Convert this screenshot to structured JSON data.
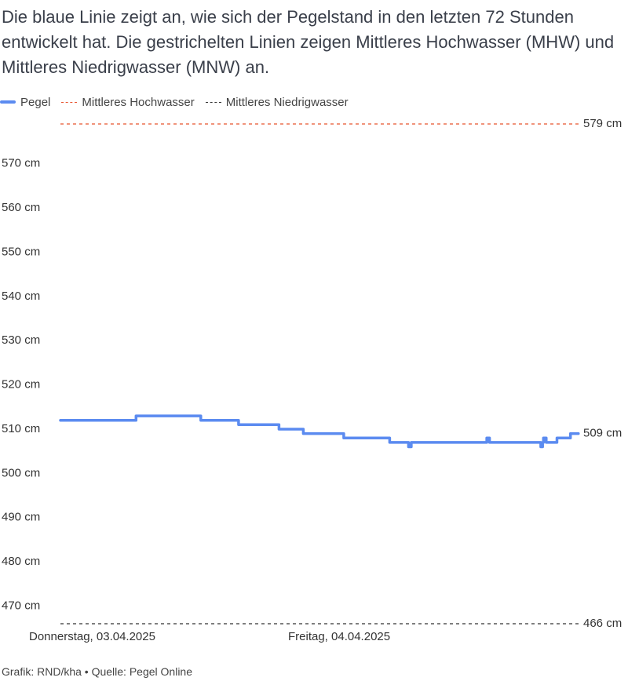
{
  "subtitle": "Die blaue Linie zeigt an, wie sich der Pegelstand in den letzten 72 Stunden entwickelt hat. Die gestrichelten Linien zeigen Mittleres Hochwasser (MHW) und Mittleres Niedrigwasser (MNW) an.",
  "legend": {
    "pegel": "Pegel",
    "mhw": "Mittleres Hochwasser",
    "mnw": "Mittleres Niedrigwasser"
  },
  "footer": "Grafik: RND/kha • Quelle: Pegel Online",
  "colors": {
    "pegel": "#5b8bf0",
    "mhw": "#e8542f",
    "mnw": "#333333"
  },
  "chart_data": {
    "type": "line",
    "xlabel": "",
    "ylabel": "",
    "y_unit": "cm",
    "ylim": [
      466,
      579
    ],
    "y_ticks": [
      470,
      480,
      490,
      500,
      510,
      520,
      530,
      540,
      550,
      560,
      570
    ],
    "y_tick_labels": [
      "470 cm",
      "480 cm",
      "490 cm",
      "500 cm",
      "510 cm",
      "520 cm",
      "530 cm",
      "540 cm",
      "550 cm",
      "560 cm",
      "570 cm"
    ],
    "x_range": [
      "2025-04-03 00:00",
      "2025-04-05 00:00"
    ],
    "x_ticks": [
      "2025-04-03 00:00",
      "2025-04-04 00:00"
    ],
    "x_tick_labels": [
      "Donnerstag, 03.04.2025",
      "Freitag, 04.04.2025"
    ],
    "grid": false,
    "legend_position": "top-left",
    "series": [
      {
        "name": "Pegel",
        "step": true,
        "points": [
          [
            "2025-04-03 00:00",
            512
          ],
          [
            "2025-04-03 07:00",
            513
          ],
          [
            "2025-04-03 13:00",
            512
          ],
          [
            "2025-04-03 16:30",
            511
          ],
          [
            "2025-04-03 20:15",
            510
          ],
          [
            "2025-04-03 22:30",
            509
          ],
          [
            "2025-04-04 02:15",
            508
          ],
          [
            "2025-04-04 06:30",
            507
          ],
          [
            "2025-04-04 08:15",
            506
          ],
          [
            "2025-04-04 08:30",
            507
          ],
          [
            "2025-04-04 15:30",
            508
          ],
          [
            "2025-04-04 15:45",
            507
          ],
          [
            "2025-04-04 20:30",
            506
          ],
          [
            "2025-04-04 20:40",
            507
          ],
          [
            "2025-04-04 20:45",
            508
          ],
          [
            "2025-04-04 21:00",
            507
          ],
          [
            "2025-04-04 22:00",
            508
          ],
          [
            "2025-04-04 23:15",
            509
          ],
          [
            "2025-04-04 23:59",
            509
          ]
        ],
        "last_value_label": "509 cm"
      }
    ],
    "reference_lines": [
      {
        "name": "Mittleres Hochwasser",
        "value": 579,
        "label": "579 cm"
      },
      {
        "name": "Mittleres Niedrigwasser",
        "value": 466,
        "label": "466 cm"
      }
    ]
  }
}
